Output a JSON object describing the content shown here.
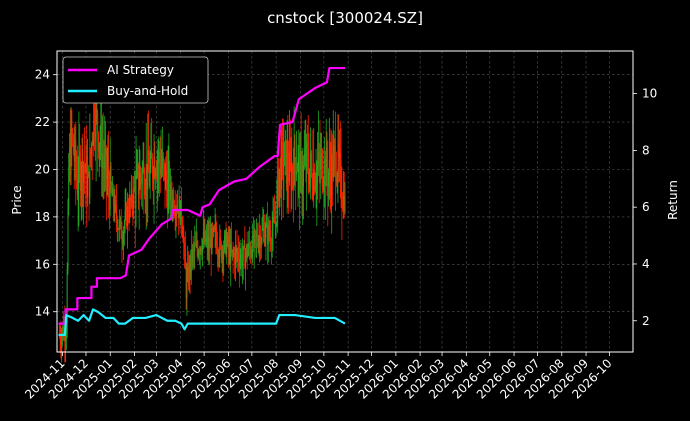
{
  "chart_data": {
    "type": "line",
    "title": "cnstock [300024.SZ]",
    "xlabel": "",
    "ylabel": "Price",
    "y2label": "Return",
    "grid": true,
    "legend_position": "top-left",
    "x_tick_labels": [
      "2024-11",
      "2024-12",
      "2025-01",
      "2025-02",
      "2025-03",
      "2025-04",
      "2025-05",
      "2025-06",
      "2025-07",
      "2025-08",
      "2025-09",
      "2025-10",
      "2025-11",
      "2025-12",
      "2026-01",
      "2026-02",
      "2026-03",
      "2026-04",
      "2026-05",
      "2026-06",
      "2026-07",
      "2026-08",
      "2026-09",
      "2026-10"
    ],
    "xlim": [
      "2024-10-25",
      "2026-10-31"
    ],
    "ylim": [
      12.3,
      25.0
    ],
    "y2lim": [
      0.9,
      11.5
    ],
    "y_ticks": [
      14,
      16,
      18,
      20,
      22,
      24
    ],
    "y2_ticks": [
      2,
      4,
      6,
      8,
      10
    ],
    "colors": {
      "up": "#22aa22",
      "down": "#ff2200",
      "ai": "#ff00ff",
      "bh": "#22eeff",
      "grid": "#555555",
      "axis": "#ffffff"
    },
    "price_anchors": [
      [
        "2024-10-28",
        13.0
      ],
      [
        "2024-11-06",
        13.4
      ],
      [
        "2024-11-09",
        20.0
      ],
      [
        "2024-11-13",
        21.3
      ],
      [
        "2024-11-20",
        19.5
      ],
      [
        "2024-11-27",
        20.5
      ],
      [
        "2024-12-04",
        19.2
      ],
      [
        "2024-12-11",
        22.5
      ],
      [
        "2024-12-18",
        21.5
      ],
      [
        "2024-12-25",
        20.0
      ],
      [
        "2025-01-02",
        19.0
      ],
      [
        "2025-01-09",
        18.0
      ],
      [
        "2025-01-16",
        17.3
      ],
      [
        "2025-01-23",
        18.2
      ],
      [
        "2025-02-05",
        19.4
      ],
      [
        "2025-02-13",
        20.0
      ],
      [
        "2025-02-20",
        19.7
      ],
      [
        "2025-02-27",
        20.6
      ],
      [
        "2025-03-06",
        20.3
      ],
      [
        "2025-03-13",
        19.5
      ],
      [
        "2025-03-20",
        18.8
      ],
      [
        "2025-03-27",
        18.5
      ],
      [
        "2025-04-03",
        18.0
      ],
      [
        "2025-04-08",
        15.0
      ],
      [
        "2025-04-15",
        16.3
      ],
      [
        "2025-04-22",
        16.7
      ],
      [
        "2025-04-29",
        17.0
      ],
      [
        "2025-05-08",
        16.8
      ],
      [
        "2025-05-15",
        17.2
      ],
      [
        "2025-05-22",
        16.6
      ],
      [
        "2025-05-29",
        16.9
      ],
      [
        "2025-06-05",
        16.3
      ],
      [
        "2025-06-12",
        16.5
      ],
      [
        "2025-06-19",
        16.2
      ],
      [
        "2025-06-26",
        16.6
      ],
      [
        "2025-07-03",
        16.8
      ],
      [
        "2025-07-10",
        17.2
      ],
      [
        "2025-07-17",
        17.4
      ],
      [
        "2025-07-24",
        17.2
      ],
      [
        "2025-07-31",
        17.8
      ],
      [
        "2025-08-05",
        20.0
      ],
      [
        "2025-08-12",
        20.4
      ],
      [
        "2025-08-19",
        19.8
      ],
      [
        "2025-08-26",
        20.6
      ],
      [
        "2025-09-02",
        19.6
      ],
      [
        "2025-09-09",
        20.3
      ],
      [
        "2025-09-16",
        19.9
      ],
      [
        "2025-09-23",
        20.0
      ],
      [
        "2025-09-30",
        20.2
      ],
      [
        "2025-10-09",
        19.8
      ],
      [
        "2025-10-16",
        20.6
      ],
      [
        "2025-10-23",
        19.5
      ],
      [
        "2025-10-28",
        18.6
      ]
    ],
    "series": [
      {
        "name": "AI Strategy",
        "points": [
          [
            "2024-10-27",
            1.9
          ],
          [
            "2024-11-05",
            1.9
          ],
          [
            "2024-11-05",
            2.4
          ],
          [
            "2024-11-20",
            2.4
          ],
          [
            "2024-11-20",
            2.8
          ],
          [
            "2024-12-08",
            2.8
          ],
          [
            "2024-12-08",
            3.2
          ],
          [
            "2024-12-15",
            3.2
          ],
          [
            "2024-12-15",
            3.5
          ],
          [
            "2025-01-14",
            3.5
          ],
          [
            "2025-01-21",
            3.6
          ],
          [
            "2025-01-25",
            4.3
          ],
          [
            "2025-02-10",
            4.5
          ],
          [
            "2025-02-20",
            4.9
          ],
          [
            "2025-03-08",
            5.4
          ],
          [
            "2025-03-20",
            5.6
          ],
          [
            "2025-03-22",
            5.9
          ],
          [
            "2025-04-10",
            5.9
          ],
          [
            "2025-04-26",
            5.7
          ],
          [
            "2025-04-29",
            6.0
          ],
          [
            "2025-05-08",
            6.1
          ],
          [
            "2025-05-20",
            6.6
          ],
          [
            "2025-06-08",
            6.9
          ],
          [
            "2025-06-24",
            7.0
          ],
          [
            "2025-07-10",
            7.4
          ],
          [
            "2025-07-30",
            7.8
          ],
          [
            "2025-08-03",
            7.8
          ],
          [
            "2025-08-06",
            8.9
          ],
          [
            "2025-08-22",
            9.0
          ],
          [
            "2025-08-30",
            9.8
          ],
          [
            "2025-09-20",
            10.2
          ],
          [
            "2025-10-05",
            10.4
          ],
          [
            "2025-10-08",
            10.9
          ],
          [
            "2025-10-28",
            10.9
          ]
        ]
      },
      {
        "name": "Buy-and-Hold",
        "points": [
          [
            "2024-10-27",
            1.5
          ],
          [
            "2024-11-04",
            1.5
          ],
          [
            "2024-11-06",
            2.2
          ],
          [
            "2024-11-14",
            2.1
          ],
          [
            "2024-11-21",
            2.0
          ],
          [
            "2024-11-28",
            2.2
          ],
          [
            "2024-12-05",
            2.0
          ],
          [
            "2024-12-10",
            2.4
          ],
          [
            "2024-12-17",
            2.3
          ],
          [
            "2024-12-26",
            2.1
          ],
          [
            "2025-01-05",
            2.1
          ],
          [
            "2025-01-12",
            1.9
          ],
          [
            "2025-01-20",
            1.9
          ],
          [
            "2025-01-30",
            2.1
          ],
          [
            "2025-02-15",
            2.1
          ],
          [
            "2025-03-01",
            2.2
          ],
          [
            "2025-03-15",
            2.0
          ],
          [
            "2025-03-25",
            2.0
          ],
          [
            "2025-04-02",
            1.9
          ],
          [
            "2025-04-06",
            1.7
          ],
          [
            "2025-04-10",
            1.9
          ],
          [
            "2025-05-01",
            1.9
          ],
          [
            "2025-05-25",
            1.9
          ],
          [
            "2025-06-20",
            1.9
          ],
          [
            "2025-07-15",
            1.9
          ],
          [
            "2025-08-01",
            1.9
          ],
          [
            "2025-08-05",
            2.2
          ],
          [
            "2025-08-25",
            2.2
          ],
          [
            "2025-09-20",
            2.1
          ],
          [
            "2025-10-15",
            2.1
          ],
          [
            "2025-10-28",
            1.9
          ]
        ]
      }
    ]
  }
}
